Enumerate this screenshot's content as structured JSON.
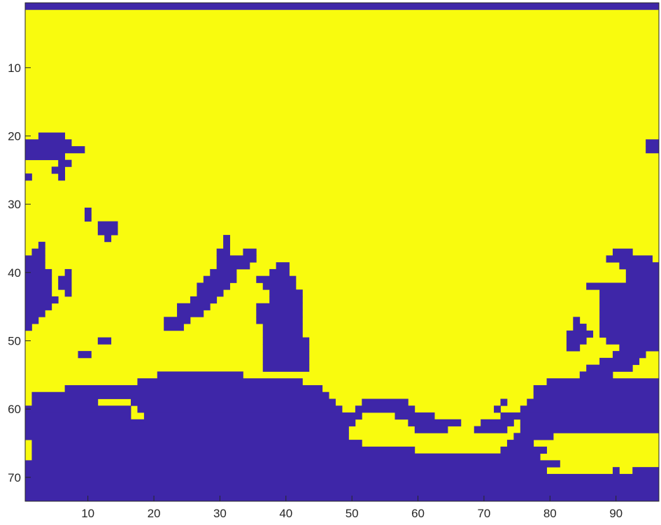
{
  "chart_data": {
    "type": "heatmap",
    "title": "",
    "xlabel": "",
    "ylabel": "",
    "xlim": [
      0.5,
      96.5
    ],
    "ylim": [
      0.5,
      73.5
    ],
    "y_direction": "reverse",
    "grid": false,
    "legend": "none",
    "x_ticks": [
      10,
      20,
      30,
      40,
      50,
      60,
      70,
      80,
      90
    ],
    "y_ticks": [
      10,
      20,
      30,
      40,
      50,
      60,
      70
    ],
    "x_tick_labels": [
      "10",
      "20",
      "30",
      "40",
      "50",
      "60",
      "70",
      "80",
      "90"
    ],
    "y_tick_labels": [
      "10",
      "20",
      "30",
      "40",
      "50",
      "60",
      "70"
    ],
    "colors": {
      "value_0": "#3e26a8",
      "value_1": "#f9fb0e"
    },
    "n_cols": 96,
    "n_rows": 73,
    "value0_regions": [
      {
        "name": "top-row",
        "rows": [
          [
            1,
            1,
            1,
            96
          ]
        ]
      },
      {
        "name": "left-upper-blob",
        "rows": [
          [
            20,
            20,
            3,
            6
          ],
          [
            21,
            21,
            1,
            7
          ],
          [
            22,
            22,
            1,
            9
          ],
          [
            23,
            23,
            1,
            6
          ],
          [
            24,
            24,
            6,
            7
          ],
          [
            25,
            25,
            5,
            6
          ],
          [
            26,
            26,
            1,
            1
          ],
          [
            26,
            26,
            6,
            6
          ]
        ]
      },
      {
        "name": "small-dots-upper",
        "rows": [
          [
            31,
            32,
            10,
            10
          ],
          [
            33,
            33,
            12,
            14
          ],
          [
            34,
            34,
            12,
            14
          ],
          [
            35,
            35,
            13,
            13
          ]
        ]
      },
      {
        "name": "left-mid-blob",
        "rows": [
          [
            36,
            36,
            3,
            3
          ],
          [
            37,
            37,
            2,
            3
          ],
          [
            38,
            39,
            1,
            3
          ],
          [
            40,
            40,
            1,
            4
          ],
          [
            41,
            41,
            1,
            4
          ],
          [
            42,
            43,
            1,
            4
          ],
          [
            44,
            44,
            1,
            5
          ],
          [
            45,
            45,
            1,
            4
          ],
          [
            46,
            46,
            1,
            3
          ],
          [
            47,
            47,
            1,
            2
          ],
          [
            48,
            48,
            1,
            1
          ]
        ]
      },
      {
        "name": "left-mid-small",
        "rows": [
          [
            40,
            40,
            7,
            7
          ],
          [
            41,
            42,
            6,
            7
          ],
          [
            43,
            43,
            7,
            7
          ]
        ]
      },
      {
        "name": "diagonal-streak",
        "rows": [
          [
            35,
            35,
            31,
            31
          ],
          [
            36,
            36,
            31,
            31
          ],
          [
            37,
            37,
            30,
            31
          ],
          [
            37,
            37,
            34,
            35
          ],
          [
            38,
            38,
            30,
            35
          ],
          [
            39,
            39,
            30,
            34
          ],
          [
            40,
            40,
            29,
            32
          ],
          [
            41,
            41,
            28,
            32
          ],
          [
            42,
            42,
            27,
            31
          ],
          [
            43,
            43,
            27,
            30
          ],
          [
            44,
            44,
            26,
            29
          ],
          [
            45,
            45,
            24,
            28
          ],
          [
            46,
            46,
            24,
            27
          ],
          [
            47,
            47,
            22,
            25
          ],
          [
            48,
            48,
            22,
            24
          ]
        ]
      },
      {
        "name": "small-dots-lower",
        "rows": [
          [
            50,
            50,
            12,
            13
          ],
          [
            52,
            52,
            9,
            10
          ]
        ]
      },
      {
        "name": "central-peak",
        "rows": [
          [
            39,
            39,
            39,
            40
          ],
          [
            40,
            40,
            38,
            40
          ],
          [
            41,
            41,
            36,
            41
          ],
          [
            42,
            42,
            37,
            41
          ],
          [
            43,
            43,
            38,
            42
          ],
          [
            44,
            44,
            38,
            42
          ],
          [
            45,
            45,
            36,
            42
          ],
          [
            46,
            47,
            36,
            42
          ],
          [
            48,
            49,
            37,
            42
          ],
          [
            50,
            53,
            37,
            43
          ],
          [
            54,
            54,
            37,
            43
          ]
        ]
      },
      {
        "name": "right-blob-upper",
        "rows": [
          [
            37,
            37,
            90,
            92
          ],
          [
            38,
            38,
            89,
            95
          ],
          [
            39,
            39,
            91,
            96
          ],
          [
            40,
            41,
            92,
            96
          ],
          [
            42,
            42,
            86,
            96
          ],
          [
            43,
            49,
            88,
            96
          ],
          [
            50,
            50,
            89,
            96
          ],
          [
            51,
            51,
            91,
            96
          ],
          [
            52,
            52,
            90,
            94
          ],
          [
            53,
            53,
            88,
            93
          ],
          [
            54,
            54,
            86,
            92
          ],
          [
            55,
            55,
            85,
            89
          ]
        ]
      },
      {
        "name": "right-small-streak",
        "rows": [
          [
            47,
            47,
            84,
            84
          ],
          [
            48,
            48,
            84,
            85
          ],
          [
            49,
            49,
            83,
            86
          ],
          [
            50,
            50,
            83,
            85
          ],
          [
            51,
            51,
            83,
            84
          ]
        ]
      },
      {
        "name": "right-edge-top",
        "rows": [
          [
            21,
            22,
            95,
            96
          ]
        ]
      },
      {
        "name": "bottom-landmass",
        "rows": [
          [
            55,
            55,
            21,
            33
          ],
          [
            56,
            56,
            18,
            42
          ],
          [
            57,
            57,
            7,
            45
          ],
          [
            58,
            58,
            2,
            46
          ],
          [
            59,
            59,
            2,
            11
          ],
          [
            59,
            59,
            17,
            47
          ],
          [
            60,
            60,
            1,
            16
          ],
          [
            60,
            60,
            18,
            48
          ],
          [
            61,
            61,
            1,
            16
          ],
          [
            61,
            61,
            19,
            51
          ],
          [
            62,
            62,
            1,
            50
          ],
          [
            63,
            63,
            1,
            49
          ],
          [
            64,
            64,
            1,
            49
          ],
          [
            65,
            65,
            2,
            96
          ],
          [
            66,
            66,
            2,
            96
          ],
          [
            67,
            67,
            1,
            96
          ],
          [
            68,
            73,
            1,
            96
          ]
        ]
      },
      {
        "name": "bottom-ridge",
        "rows": [
          [
            59,
            59,
            52,
            58
          ],
          [
            60,
            60,
            51,
            59
          ],
          [
            61,
            61,
            57,
            62
          ],
          [
            62,
            62,
            59,
            66
          ],
          [
            63,
            63,
            60,
            64
          ]
        ]
      },
      {
        "name": "bottom-right-blob",
        "rows": [
          [
            56,
            56,
            80,
            96
          ],
          [
            57,
            58,
            78,
            96
          ],
          [
            59,
            59,
            77,
            96
          ],
          [
            60,
            63,
            76,
            96
          ],
          [
            64,
            64,
            75,
            80
          ],
          [
            61,
            61,
            73,
            75
          ],
          [
            62,
            62,
            70,
            74
          ],
          [
            63,
            63,
            69,
            73
          ],
          [
            60,
            60,
            72,
            72
          ],
          [
            59,
            59,
            73,
            73
          ]
        ]
      }
    ],
    "value1_holes": [
      [
        60,
        60,
        17,
        17
      ],
      [
        61,
        61,
        17,
        18
      ],
      [
        62,
        62,
        51,
        56
      ],
      [
        63,
        63,
        50,
        56
      ],
      [
        64,
        64,
        50,
        65
      ],
      [
        65,
        65,
        52,
        73
      ],
      [
        66,
        66,
        60,
        72
      ],
      [
        64,
        64,
        81,
        96
      ],
      [
        65,
        65,
        78,
        96
      ],
      [
        66,
        66,
        80,
        96
      ],
      [
        67,
        67,
        79,
        96
      ],
      [
        68,
        68,
        82,
        96
      ],
      [
        69,
        69,
        80,
        89
      ],
      [
        69,
        69,
        91,
        92
      ],
      [
        65,
        67,
        1,
        1
      ]
    ]
  }
}
